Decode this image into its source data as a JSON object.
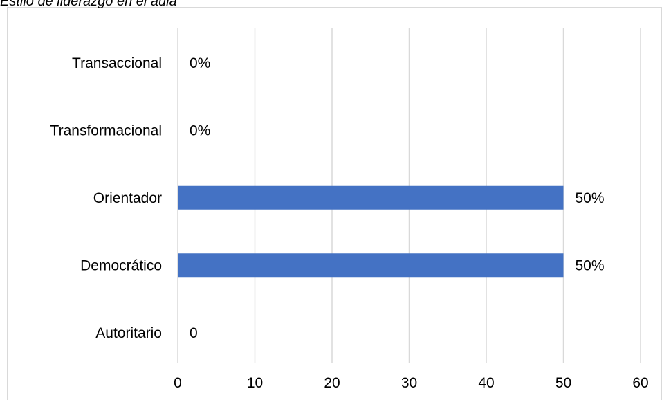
{
  "chart_data": {
    "type": "bar",
    "orientation": "horizontal",
    "title": "Estilo de liderazgo en el aula",
    "categories": [
      "Transaccional",
      "Transformacional",
      "Orientador",
      "Democrático",
      "Autoritario"
    ],
    "values": [
      0,
      0,
      50,
      50,
      0
    ],
    "data_labels": [
      "0%",
      "0%",
      "50%",
      "50%",
      "0"
    ],
    "x_ticks": [
      "0",
      "10",
      "20",
      "30",
      "40",
      "50",
      "60"
    ],
    "xlim": [
      0,
      60
    ],
    "xlabel": "",
    "ylabel": "",
    "grid": "vertical",
    "legend": "none",
    "bar_color": "#4472c4",
    "grid_color": "#d9d9d9"
  }
}
